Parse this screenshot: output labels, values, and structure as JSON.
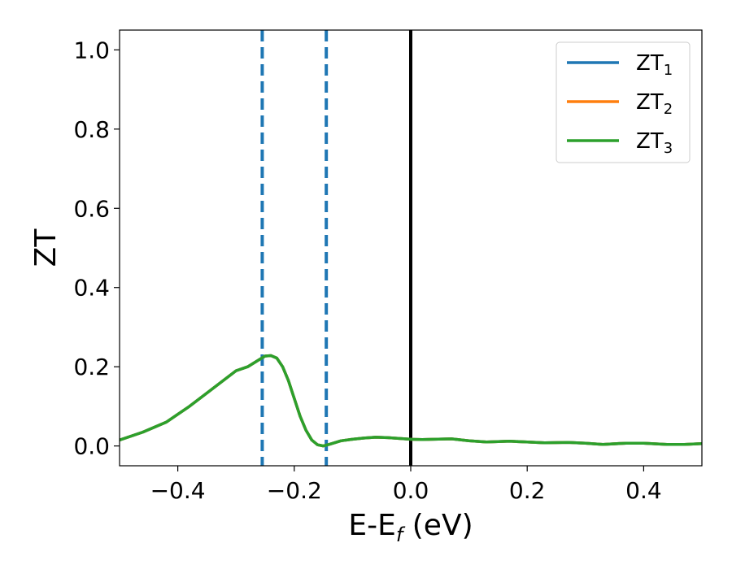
{
  "chart_data": {
    "type": "line",
    "xlabel": {
      "main": "E-E",
      "sub": "f",
      "suffix": " (eV)"
    },
    "ylabel": "ZT",
    "xlim": [
      -0.5,
      0.5
    ],
    "ylim": [
      -0.05,
      1.05
    ],
    "xticks": [
      -0.4,
      -0.2,
      0.0,
      0.2,
      0.4
    ],
    "xtick_labels": [
      "−0.4",
      "−0.2",
      "0.0",
      "0.2",
      "0.4"
    ],
    "yticks": [
      0.0,
      0.2,
      0.4,
      0.6,
      0.8,
      1.0
    ],
    "ytick_labels": [
      "0.0",
      "0.2",
      "0.4",
      "0.6",
      "0.8",
      "1.0"
    ],
    "grid": false,
    "legend_placement": "top-right",
    "vlines": [
      {
        "x": -0.255,
        "style": "dashed",
        "color": "#1f77b4"
      },
      {
        "x": -0.145,
        "style": "dashed",
        "color": "#1f77b4"
      },
      {
        "x": 0.0,
        "style": "solid",
        "color": "#000000"
      }
    ],
    "x": [
      -0.5,
      -0.46,
      -0.42,
      -0.38,
      -0.34,
      -0.3,
      -0.28,
      -0.26,
      -0.25,
      -0.24,
      -0.23,
      -0.22,
      -0.21,
      -0.2,
      -0.19,
      -0.18,
      -0.17,
      -0.16,
      -0.15,
      -0.14,
      -0.12,
      -0.1,
      -0.08,
      -0.06,
      -0.04,
      -0.02,
      0.0,
      0.02,
      0.04,
      0.07,
      0.1,
      0.13,
      0.17,
      0.2,
      0.23,
      0.27,
      0.3,
      0.33,
      0.37,
      0.4,
      0.44,
      0.47,
      0.5
    ],
    "series": [
      {
        "name": "ZT",
        "sub": "1",
        "color": "#1f77b4",
        "values": [
          0.015,
          0.035,
          0.06,
          0.1,
          0.145,
          0.19,
          0.2,
          0.218,
          0.227,
          0.228,
          0.222,
          0.2,
          0.165,
          0.12,
          0.075,
          0.04,
          0.015,
          0.003,
          0.0,
          0.004,
          0.013,
          0.017,
          0.02,
          0.022,
          0.021,
          0.019,
          0.017,
          0.016,
          0.017,
          0.018,
          0.013,
          0.01,
          0.012,
          0.01,
          0.008,
          0.009,
          0.007,
          0.004,
          0.007,
          0.007,
          0.004,
          0.004,
          0.006
        ]
      },
      {
        "name": "ZT",
        "sub": "2",
        "color": "#ff7f0e",
        "values": [
          0.015,
          0.035,
          0.06,
          0.1,
          0.145,
          0.19,
          0.2,
          0.218,
          0.227,
          0.228,
          0.222,
          0.2,
          0.165,
          0.12,
          0.075,
          0.04,
          0.015,
          0.003,
          0.0,
          0.004,
          0.013,
          0.017,
          0.02,
          0.022,
          0.021,
          0.019,
          0.017,
          0.016,
          0.017,
          0.018,
          0.013,
          0.01,
          0.012,
          0.01,
          0.008,
          0.009,
          0.007,
          0.004,
          0.007,
          0.007,
          0.004,
          0.004,
          0.006
        ]
      },
      {
        "name": "ZT",
        "sub": "3",
        "color": "#2ca02c",
        "values": [
          0.015,
          0.035,
          0.06,
          0.1,
          0.145,
          0.19,
          0.2,
          0.218,
          0.227,
          0.228,
          0.222,
          0.2,
          0.165,
          0.12,
          0.075,
          0.04,
          0.015,
          0.003,
          0.0,
          0.004,
          0.013,
          0.017,
          0.02,
          0.022,
          0.021,
          0.019,
          0.017,
          0.016,
          0.017,
          0.018,
          0.013,
          0.01,
          0.012,
          0.01,
          0.008,
          0.009,
          0.007,
          0.004,
          0.007,
          0.007,
          0.004,
          0.004,
          0.006
        ]
      }
    ]
  }
}
